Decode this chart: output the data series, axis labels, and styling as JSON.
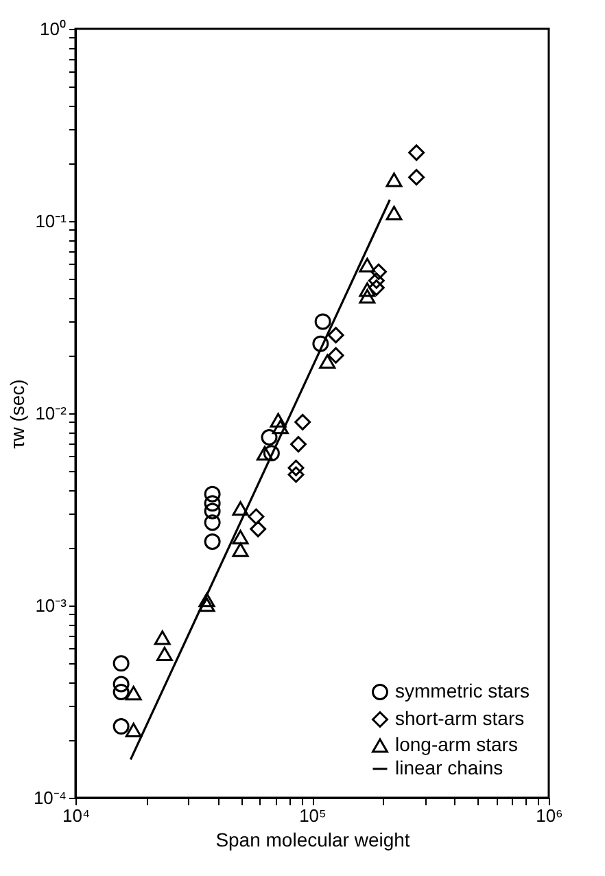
{
  "chart_data": {
    "type": "scatter",
    "xlabel": "Span molecular weight",
    "ylabel": "τw (sec)",
    "log": "xy",
    "grid": false,
    "legend": "bottom right",
    "xlim": [
      10000,
      1000000
    ],
    "ylim": [
      0.0001,
      1
    ],
    "xticks": [
      {
        "value": 10000,
        "label": "10⁴"
      },
      {
        "value": 20000,
        "label": null
      },
      {
        "value": 30000,
        "label": null
      },
      {
        "value": 40000,
        "label": null
      },
      {
        "value": 50000,
        "label": null
      },
      {
        "value": 60000,
        "label": null
      },
      {
        "value": 70000,
        "label": null
      },
      {
        "value": 80000,
        "label": null
      },
      {
        "value": 90000,
        "label": null
      },
      {
        "value": 100000,
        "label": "10⁵"
      },
      {
        "value": 200000,
        "label": null
      },
      {
        "value": 300000,
        "label": null
      },
      {
        "value": 400000,
        "label": null
      },
      {
        "value": 500000,
        "label": null
      },
      {
        "value": 600000,
        "label": null
      },
      {
        "value": 700000,
        "label": null
      },
      {
        "value": 800000,
        "label": null
      },
      {
        "value": 900000,
        "label": null
      },
      {
        "value": 1000000,
        "label": "10⁶"
      }
    ],
    "yticks": [
      {
        "value": 0.0001,
        "label": "10⁻⁴"
      },
      {
        "value": 0.0002,
        "label": null
      },
      {
        "value": 0.0003,
        "label": null
      },
      {
        "value": 0.0004,
        "label": null
      },
      {
        "value": 0.0005,
        "label": null
      },
      {
        "value": 0.0006,
        "label": null
      },
      {
        "value": 0.0007,
        "label": null
      },
      {
        "value": 0.0008,
        "label": null
      },
      {
        "value": 0.0009,
        "label": null
      },
      {
        "value": 0.001,
        "label": "10⁻³"
      },
      {
        "value": 0.002,
        "label": null
      },
      {
        "value": 0.003,
        "label": null
      },
      {
        "value": 0.004,
        "label": null
      },
      {
        "value": 0.005,
        "label": null
      },
      {
        "value": 0.006,
        "label": null
      },
      {
        "value": 0.007,
        "label": null
      },
      {
        "value": 0.008,
        "label": null
      },
      {
        "value": 0.009,
        "label": null
      },
      {
        "value": 0.01,
        "label": "10⁻²"
      },
      {
        "value": 0.02,
        "label": null
      },
      {
        "value": 0.03,
        "label": null
      },
      {
        "value": 0.04,
        "label": null
      },
      {
        "value": 0.05,
        "label": null
      },
      {
        "value": 0.06,
        "label": null
      },
      {
        "value": 0.07,
        "label": null
      },
      {
        "value": 0.08,
        "label": null
      },
      {
        "value": 0.09,
        "label": null
      },
      {
        "value": 0.1,
        "label": "10⁻¹"
      },
      {
        "value": 0.2,
        "label": null
      },
      {
        "value": 0.3,
        "label": null
      },
      {
        "value": 0.4,
        "label": null
      },
      {
        "value": 0.5,
        "label": null
      },
      {
        "value": 0.6,
        "label": null
      },
      {
        "value": 0.7,
        "label": null
      },
      {
        "value": 0.8,
        "label": null
      },
      {
        "value": 0.9,
        "label": null
      },
      {
        "value": 1,
        "label": "10⁰"
      }
    ],
    "series": [
      {
        "name": "symmetric stars",
        "type": "scatter",
        "marker": "circle",
        "color": "#000000",
        "x": [
          15600,
          15600,
          15600,
          15600,
          37900,
          37900,
          37900,
          37900,
          37900,
          65900,
          67400,
          111000,
          108600
        ],
        "values": [
          0.0005,
          0.00039,
          0.000355,
          0.000235,
          0.0038,
          0.0034,
          0.0031,
          0.0027,
          0.00215,
          0.0075,
          0.0062,
          0.03,
          0.023
        ]
      },
      {
        "name": "short-arm stars",
        "type": "scatter",
        "marker": "diamond",
        "color": "#000000",
        "x": [
          58000,
          59100,
          91200,
          87500,
          85500,
          85500,
          126000,
          126000,
          191000,
          187000,
          187000,
          276000,
          276000
        ],
        "values": [
          0.0029,
          0.0025,
          0.009,
          0.0069,
          0.0052,
          0.0048,
          0.0255,
          0.02,
          0.0545,
          0.049,
          0.045,
          0.227,
          0.169
        ]
      },
      {
        "name": "long-arm stars",
        "type": "scatter",
        "marker": "triangle",
        "color": "#000000",
        "x": [
          17600,
          17600,
          23300,
          23800,
          35900,
          35900,
          49800,
          49800,
          49800,
          63100,
          71900,
          73500,
          116000,
          171000,
          171000,
          171000,
          222000,
          222000
        ],
        "values": [
          0.00035,
          0.000225,
          0.00068,
          0.00056,
          0.00107,
          0.00101,
          0.0032,
          0.00227,
          0.00195,
          0.0062,
          0.0092,
          0.0085,
          0.0186,
          0.0406,
          0.044,
          0.059,
          0.164,
          0.11
        ]
      },
      {
        "name": "linear chains",
        "type": "line",
        "marker": "none",
        "line_style": "solid",
        "color": "#000000",
        "x": [
          17100,
          213000
        ],
        "values": [
          0.000158,
          0.129
        ]
      }
    ]
  }
}
